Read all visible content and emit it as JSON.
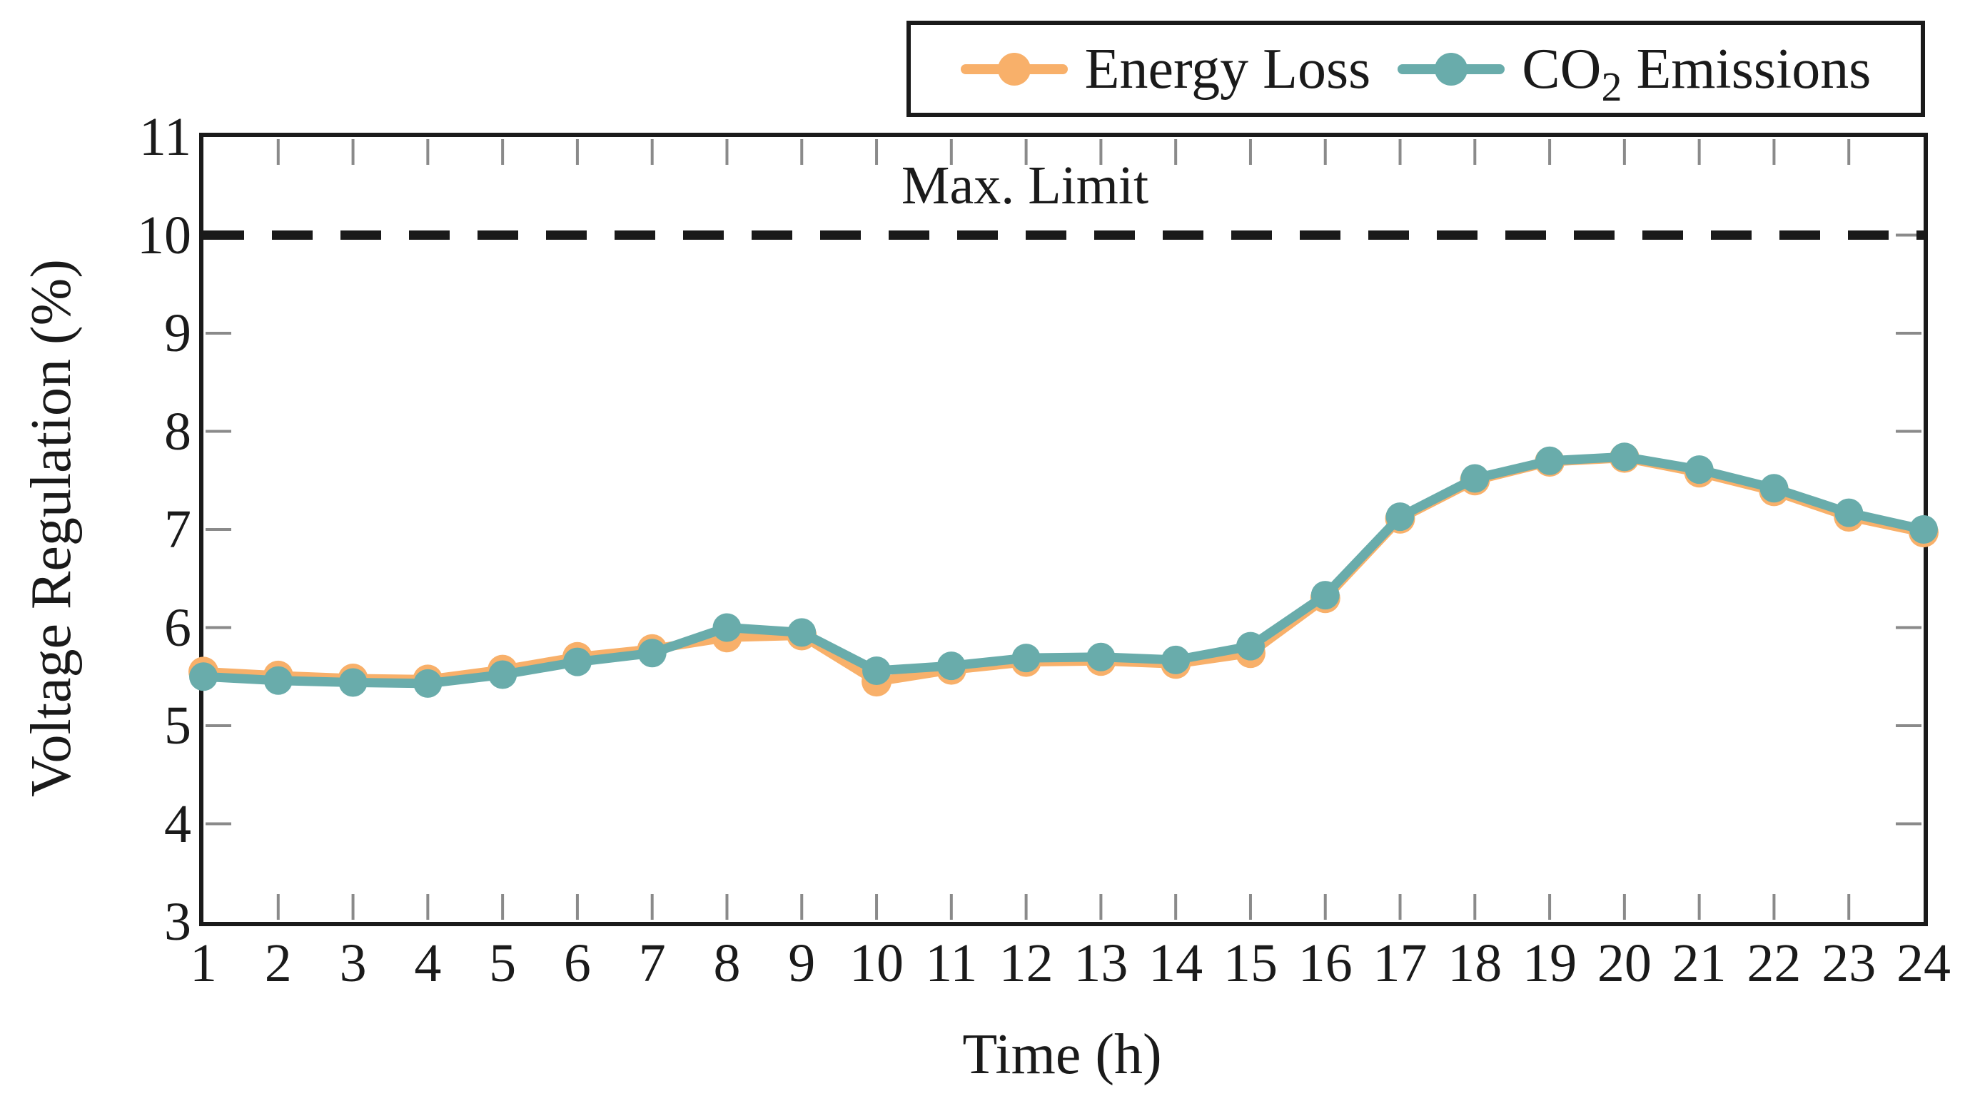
{
  "chart_data": {
    "type": "line",
    "title": "",
    "xlabel": "Time (h)",
    "ylabel": "Voltage Regulation (%)",
    "xlim": [
      1,
      24
    ],
    "ylim": [
      3,
      11
    ],
    "x_ticks": [
      1,
      2,
      3,
      4,
      5,
      6,
      7,
      8,
      9,
      10,
      11,
      12,
      13,
      14,
      15,
      16,
      17,
      18,
      19,
      20,
      21,
      22,
      23,
      24
    ],
    "y_ticks": [
      3,
      4,
      5,
      6,
      7,
      8,
      9,
      10,
      11
    ],
    "grid": false,
    "tick_style": "short inner gray ticks on all four borders",
    "legend_position": "outside top right",
    "x": [
      1,
      2,
      3,
      4,
      5,
      6,
      7,
      8,
      9,
      10,
      11,
      12,
      13,
      14,
      15,
      16,
      17,
      18,
      19,
      20,
      21,
      22,
      23,
      24
    ],
    "series": [
      {
        "name": "Energy Loss",
        "color": "#F8B06A",
        "marker": "circle",
        "values": [
          5.55,
          5.51,
          5.48,
          5.47,
          5.57,
          5.7,
          5.78,
          5.9,
          5.92,
          5.45,
          5.57,
          5.65,
          5.66,
          5.63,
          5.74,
          6.3,
          7.11,
          7.5,
          7.69,
          7.73,
          7.58,
          7.39,
          7.13,
          6.97
        ]
      },
      {
        "name": "CO2 Emissions",
        "color": "#69ACAB",
        "marker": "circle",
        "values": [
          5.5,
          5.46,
          5.44,
          5.43,
          5.52,
          5.65,
          5.74,
          6.0,
          5.95,
          5.56,
          5.61,
          5.69,
          5.7,
          5.67,
          5.81,
          6.33,
          7.13,
          7.52,
          7.7,
          7.74,
          7.61,
          7.42,
          7.17,
          7.0
        ]
      }
    ],
    "annotations": [
      {
        "label": "Max. Limit",
        "y": 10,
        "style": "dashed black horizontal line"
      }
    ]
  },
  "legend": {
    "items": [
      {
        "label": "Energy Loss"
      },
      {
        "label_pre": "CO",
        "label_sub": "2",
        "label_post": " Emissions"
      }
    ]
  },
  "axes": {
    "x_title": "Time (h)",
    "y_title": "Voltage Regulation (%)"
  },
  "annotation": {
    "max_limit_label": "Max. Limit"
  },
  "colors": {
    "energy_loss": "#F8B06A",
    "co2_emissions": "#69ACAB",
    "axis": "#1a1a1a",
    "tick_marks": "#8a8a8a",
    "background": "#ffffff"
  }
}
